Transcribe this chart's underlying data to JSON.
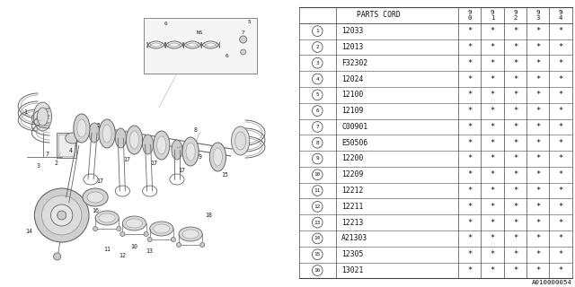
{
  "diagram_code": "A010000054",
  "bg_color": "#ffffff",
  "table": {
    "rows": [
      [
        1,
        "12033"
      ],
      [
        2,
        "12013"
      ],
      [
        3,
        "F32302"
      ],
      [
        4,
        "12024"
      ],
      [
        5,
        "12100"
      ],
      [
        6,
        "12109"
      ],
      [
        7,
        "C00901"
      ],
      [
        8,
        "E50506"
      ],
      [
        9,
        "12200"
      ],
      [
        10,
        "12209"
      ],
      [
        11,
        "12212"
      ],
      [
        12,
        "12211"
      ],
      [
        13,
        "12213"
      ],
      [
        14,
        "A21303"
      ],
      [
        15,
        "12305"
      ],
      [
        16,
        "13021"
      ]
    ],
    "year_cols": [
      "9\n0",
      "9\n1",
      "9\n2",
      "9\n3",
      "9\n4"
    ]
  },
  "font_size": 5.8,
  "line_color": "#444444",
  "text_color": "#111111"
}
